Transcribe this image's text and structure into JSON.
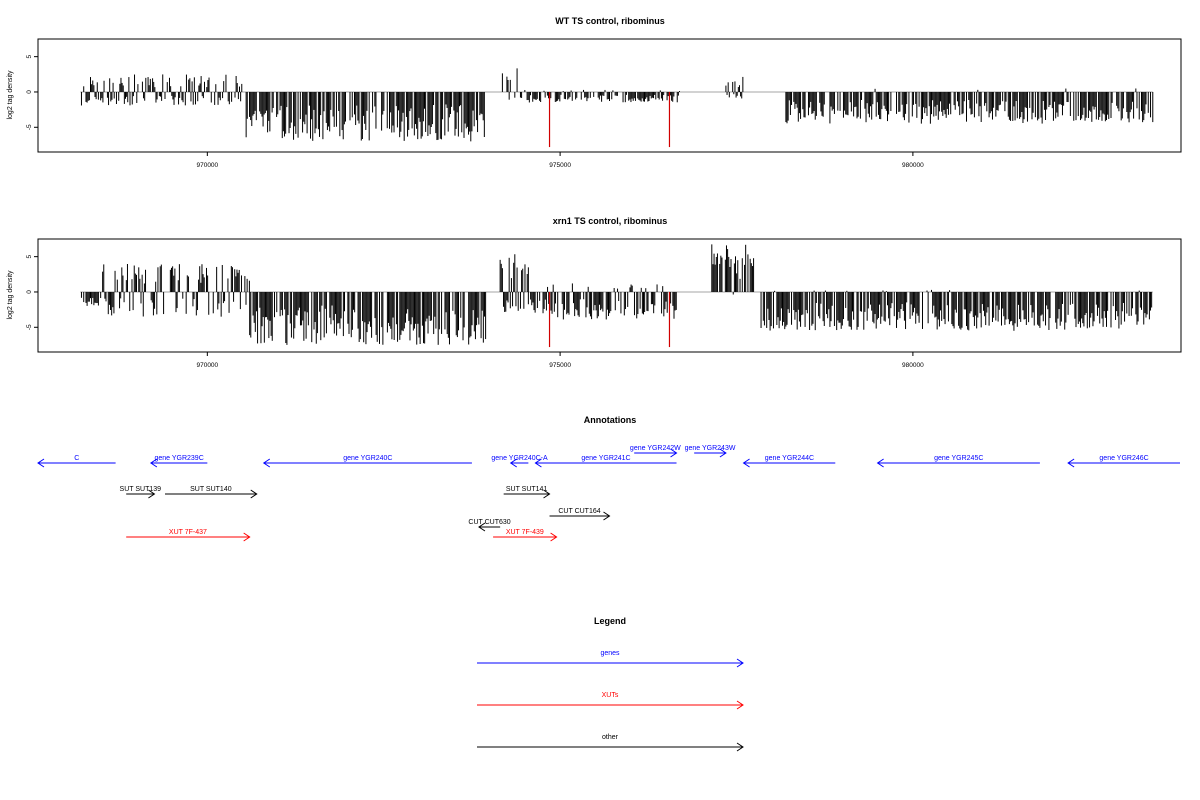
{
  "charts": [
    {
      "title": "WT TS control, ribominus",
      "ylabel": "log2 tag density",
      "x_ticks": [
        970000,
        975000,
        980000
      ],
      "y_ticks": [
        5,
        0,
        -5
      ],
      "xlim": [
        967600,
        983800
      ],
      "ylim": [
        -8.5,
        7.5
      ],
      "seed": 7,
      "bar_color": "#000000",
      "highlight_color": "#d00000"
    },
    {
      "title": "xrn1 TS control, ribominus",
      "ylabel": "log2 tag density",
      "x_ticks": [
        970000,
        975000,
        980000
      ],
      "y_ticks": [
        5,
        0,
        -5
      ],
      "xlim": [
        967600,
        983800
      ],
      "ylim": [
        -8.5,
        7.5
      ],
      "seed": 13,
      "bar_color": "#000000",
      "highlight_color": "#d00000"
    }
  ],
  "chart_data": [
    {
      "type": "bar",
      "title": "WT TS control, ribominus",
      "xlabel": "",
      "ylabel": "log2 tag density",
      "xlim": [
        967600,
        983800
      ],
      "ylim": [
        -8.5,
        7.5
      ],
      "grid": false,
      "highlighted_values": [
        {
          "x": 974850,
          "y": -7.8
        },
        {
          "x": 976550,
          "y": -7.8
        }
      ],
      "region_profile": [
        {
          "from": 968200,
          "to": 970500,
          "pos_max": 2.5,
          "neg_max": 2.0,
          "pos_frac": 0.45
        },
        {
          "from": 970550,
          "to": 973950,
          "pos_max": 0.0,
          "neg_max": 7.0,
          "pos_frac": 0.0
        },
        {
          "from": 974150,
          "to": 974500,
          "pos_max": 3.4,
          "neg_max": 1.5,
          "pos_frac": 0.6
        },
        {
          "from": 974500,
          "to": 976700,
          "pos_max": 0.3,
          "neg_max": 1.5,
          "pos_frac": 0.1
        },
        {
          "from": 977350,
          "to": 977600,
          "pos_max": 2.2,
          "neg_max": 1.0,
          "pos_frac": 0.5
        },
        {
          "from": 978200,
          "to": 983400,
          "pos_max": 0.6,
          "neg_max": 4.5,
          "pos_frac": 0.03
        }
      ]
    },
    {
      "type": "bar",
      "title": "xrn1 TS control, ribominus",
      "xlabel": "",
      "ylabel": "log2 tag density",
      "xlim": [
        967600,
        983800
      ],
      "ylim": [
        -8.5,
        7.5
      ],
      "grid": false,
      "highlighted_values": [
        {
          "x": 974850,
          "y": -7.8
        },
        {
          "x": 976550,
          "y": -7.8
        }
      ],
      "region_profile": [
        {
          "from": 968200,
          "to": 968500,
          "pos_max": 0.0,
          "neg_max": 2.0,
          "pos_frac": 0.0
        },
        {
          "from": 968500,
          "to": 970600,
          "pos_max": 4.0,
          "neg_max": 3.5,
          "pos_frac": 0.55
        },
        {
          "from": 970600,
          "to": 973950,
          "pos_max": 0.0,
          "neg_max": 7.5,
          "pos_frac": 0.0
        },
        {
          "from": 974150,
          "to": 974550,
          "pos_max": 5.4,
          "neg_max": 3.0,
          "pos_frac": 0.6
        },
        {
          "from": 974550,
          "to": 976700,
          "pos_max": 1.5,
          "neg_max": 4.0,
          "pos_frac": 0.15
        },
        {
          "from": 977150,
          "to": 977750,
          "pos_max": 6.8,
          "neg_max": 0.5,
          "pos_frac": 0.95
        },
        {
          "from": 977800,
          "to": 983400,
          "pos_max": 0.3,
          "neg_max": 5.5,
          "pos_frac": 0.02
        }
      ]
    }
  ],
  "annotations": {
    "title": "Annotations",
    "items": [
      {
        "label": "C",
        "color": "#0000ff",
        "start": 967600,
        "end": 968700,
        "dir": "left",
        "row": 0
      },
      {
        "label": "gene YGR239C",
        "color": "#0000ff",
        "start": 969200,
        "end": 970000,
        "dir": "left",
        "row": 0
      },
      {
        "label": "gene YGR240C",
        "color": "#0000ff",
        "start": 970800,
        "end": 973750,
        "dir": "left",
        "row": 0
      },
      {
        "label": "gene YGR240C-A",
        "color": "#0000ff",
        "start": 974300,
        "end": 974550,
        "dir": "left",
        "row": 0
      },
      {
        "label": "gene YGR241C",
        "color": "#0000ff",
        "start": 974650,
        "end": 976650,
        "dir": "left",
        "row": 0
      },
      {
        "label": "gene YGR242W",
        "color": "#0000ff",
        "start": 976050,
        "end": 976650,
        "dir": "right",
        "row": -1
      },
      {
        "label": "gene YGR243W",
        "color": "#0000ff",
        "start": 976900,
        "end": 977350,
        "dir": "right",
        "row": -1
      },
      {
        "label": "gene YGR244C",
        "color": "#0000ff",
        "start": 977600,
        "end": 978900,
        "dir": "left",
        "row": 0
      },
      {
        "label": "gene YGR245C",
        "color": "#0000ff",
        "start": 979500,
        "end": 981800,
        "dir": "left",
        "row": 0
      },
      {
        "label": "gene YGR246C",
        "color": "#0000ff",
        "start": 982200,
        "end": 983800,
        "dir": "left",
        "row": 0
      },
      {
        "label": "SUT SUT139",
        "color": "#000000",
        "start": 968850,
        "end": 969250,
        "dir": "right",
        "row": 1
      },
      {
        "label": "SUT SUT140",
        "color": "#000000",
        "start": 969400,
        "end": 970700,
        "dir": "right",
        "row": 1
      },
      {
        "label": "SUT SUT141",
        "color": "#000000",
        "start": 974200,
        "end": 974850,
        "dir": "right",
        "row": 1
      },
      {
        "label": "CUT CUT164",
        "color": "#000000",
        "start": 974850,
        "end": 975700,
        "dir": "right",
        "row": 2
      },
      {
        "label": "CUT CUT630",
        "color": "#000000",
        "start": 973850,
        "end": 974150,
        "dir": "left",
        "row": 3
      },
      {
        "label": "XUT 7F-437",
        "color": "#ff0000",
        "start": 968850,
        "end": 970600,
        "dir": "right",
        "row": 4
      },
      {
        "label": "XUT 7F-439",
        "color": "#ff0000",
        "start": 974050,
        "end": 974950,
        "dir": "right",
        "row": 4
      }
    ]
  },
  "legend": {
    "title": "Legend",
    "items": [
      {
        "label": "genes",
        "color": "#0000ff"
      },
      {
        "label": "XUTs",
        "color": "#ff0000"
      },
      {
        "label": "other",
        "color": "#000000"
      }
    ]
  }
}
